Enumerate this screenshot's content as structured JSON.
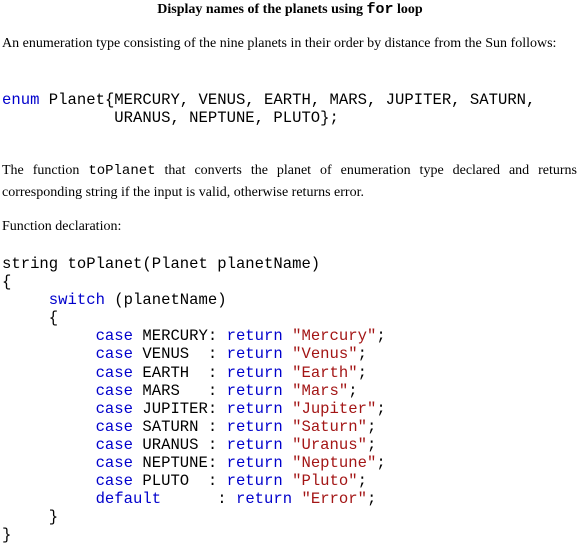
{
  "title": [
    "Display names of the planets using ",
    "for",
    " loop"
  ],
  "intro": "An enumeration type consisting of the nine planets in their order by distance from the Sun follows:",
  "enum_code": [
    [
      {
        "text": "enum",
        "color": "#0000cc"
      },
      {
        "text": " Planet{MERCURY, VENUS, EARTH, MARS, JUPITER, SATURN,",
        "color": "#000000"
      }
    ],
    [
      {
        "text": "            URANUS, NEPTUNE, PLUTO};",
        "color": "#000000"
      }
    ]
  ],
  "description": [
    "The function ",
    "toPlanet",
    " that converts the planet of enumeration type declared and returns corresponding string if the input is valid, otherwise returns error."
  ],
  "declaration_label": "Function declaration:",
  "function_code": [
    [
      {
        "text": "string toPlanet(Planet planetName)",
        "color": "#000000"
      }
    ],
    [
      {
        "text": "{",
        "color": "#000000"
      }
    ],
    [
      {
        "text": "     switch",
        "color": "#0000cc"
      },
      {
        "text": " (planetName)",
        "color": "#000000"
      }
    ],
    [
      {
        "text": "     {",
        "color": "#000000"
      }
    ],
    [
      {
        "text": "          case",
        "color": "#0000cc"
      },
      {
        "text": " MERCURY: ",
        "color": "#000000"
      },
      {
        "text": "return",
        "color": "#0000cc"
      },
      {
        "text": " \"Mercury\"",
        "color": "#a31515"
      },
      {
        "text": ";",
        "color": "#000000"
      }
    ],
    [
      {
        "text": "          case",
        "color": "#0000cc"
      },
      {
        "text": " VENUS  : ",
        "color": "#000000"
      },
      {
        "text": "return",
        "color": "#0000cc"
      },
      {
        "text": " \"Venus\"",
        "color": "#a31515"
      },
      {
        "text": ";",
        "color": "#000000"
      }
    ],
    [
      {
        "text": "          case",
        "color": "#0000cc"
      },
      {
        "text": " EARTH  : ",
        "color": "#000000"
      },
      {
        "text": "return",
        "color": "#0000cc"
      },
      {
        "text": " \"Earth\"",
        "color": "#a31515"
      },
      {
        "text": ";",
        "color": "#000000"
      }
    ],
    [
      {
        "text": "          case",
        "color": "#0000cc"
      },
      {
        "text": " MARS   : ",
        "color": "#000000"
      },
      {
        "text": "return",
        "color": "#0000cc"
      },
      {
        "text": " \"Mars\"",
        "color": "#a31515"
      },
      {
        "text": ";",
        "color": "#000000"
      }
    ],
    [
      {
        "text": "          case",
        "color": "#0000cc"
      },
      {
        "text": " JUPITER: ",
        "color": "#000000"
      },
      {
        "text": "return",
        "color": "#0000cc"
      },
      {
        "text": " \"Jupiter\"",
        "color": "#a31515"
      },
      {
        "text": ";",
        "color": "#000000"
      }
    ],
    [
      {
        "text": "          case",
        "color": "#0000cc"
      },
      {
        "text": " SATURN : ",
        "color": "#000000"
      },
      {
        "text": "return",
        "color": "#0000cc"
      },
      {
        "text": " \"Saturn\"",
        "color": "#a31515"
      },
      {
        "text": ";",
        "color": "#000000"
      }
    ],
    [
      {
        "text": "          case",
        "color": "#0000cc"
      },
      {
        "text": " URANUS : ",
        "color": "#000000"
      },
      {
        "text": "return",
        "color": "#0000cc"
      },
      {
        "text": " \"Uranus\"",
        "color": "#a31515"
      },
      {
        "text": ";",
        "color": "#000000"
      }
    ],
    [
      {
        "text": "          case",
        "color": "#0000cc"
      },
      {
        "text": " NEPTUNE: ",
        "color": "#000000"
      },
      {
        "text": "return",
        "color": "#0000cc"
      },
      {
        "text": " \"Neptune\"",
        "color": "#a31515"
      },
      {
        "text": ";",
        "color": "#000000"
      }
    ],
    [
      {
        "text": "          case",
        "color": "#0000cc"
      },
      {
        "text": " PLUTO  : ",
        "color": "#000000"
      },
      {
        "text": "return",
        "color": "#0000cc"
      },
      {
        "text": " \"Pluto\"",
        "color": "#a31515"
      },
      {
        "text": ";",
        "color": "#000000"
      }
    ],
    [
      {
        "text": "          default",
        "color": "#0000cc"
      },
      {
        "text": "      : ",
        "color": "#000000"
      },
      {
        "text": "return",
        "color": "#0000cc"
      },
      {
        "text": " \"Error\"",
        "color": "#a31515"
      },
      {
        "text": ";",
        "color": "#000000"
      }
    ],
    [
      {
        "text": "     }",
        "color": "#000000"
      }
    ],
    [
      {
        "text": "}",
        "color": "#000000"
      }
    ]
  ]
}
